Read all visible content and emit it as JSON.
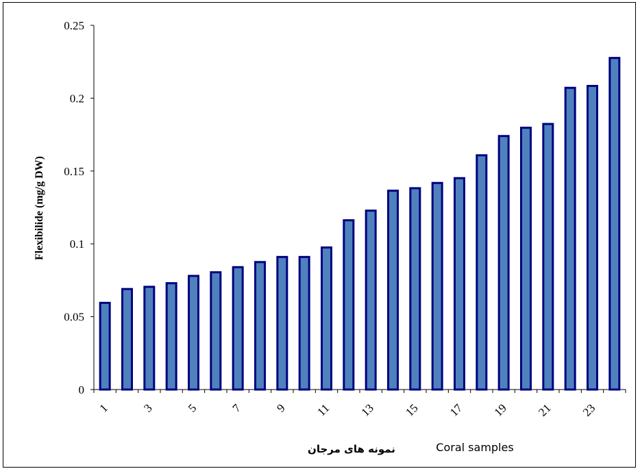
{
  "chart_data": {
    "type": "bar",
    "title": "",
    "ylabel": "Flexibilide (mg/g DW)",
    "xlabel": "Coral samples",
    "xlabel_fa": "نمونه های مرجان",
    "ylim": [
      0,
      0.25
    ],
    "yticks": [
      "0",
      "0.05",
      "0.1",
      "0.15",
      "0.2",
      "0.25"
    ],
    "categories": [
      "1",
      "2",
      "3",
      "4",
      "5",
      "6",
      "7",
      "8",
      "9",
      "10",
      "11",
      "12",
      "13",
      "14",
      "15",
      "16",
      "17",
      "18",
      "19",
      "20",
      "21",
      "22",
      "23",
      "24"
    ],
    "tick_labels": [
      "1",
      "",
      "3",
      "",
      "5",
      "",
      "7",
      "",
      "9",
      "",
      "11",
      "",
      "13",
      "",
      "15",
      "",
      "17",
      "",
      "19",
      "",
      "21",
      "",
      "23",
      ""
    ],
    "values": [
      0.0595,
      0.069,
      0.0705,
      0.073,
      0.078,
      0.0805,
      0.084,
      0.0875,
      0.091,
      0.091,
      0.0975,
      0.1162,
      0.1228,
      0.1365,
      0.1382,
      0.1418,
      0.1451,
      0.1608,
      0.174,
      0.1797,
      0.1823,
      0.2071,
      0.2084,
      0.2276
    ],
    "grid": false,
    "legend": "none",
    "bar_fill": "#4f81bd",
    "bar_stroke": "#000080"
  }
}
